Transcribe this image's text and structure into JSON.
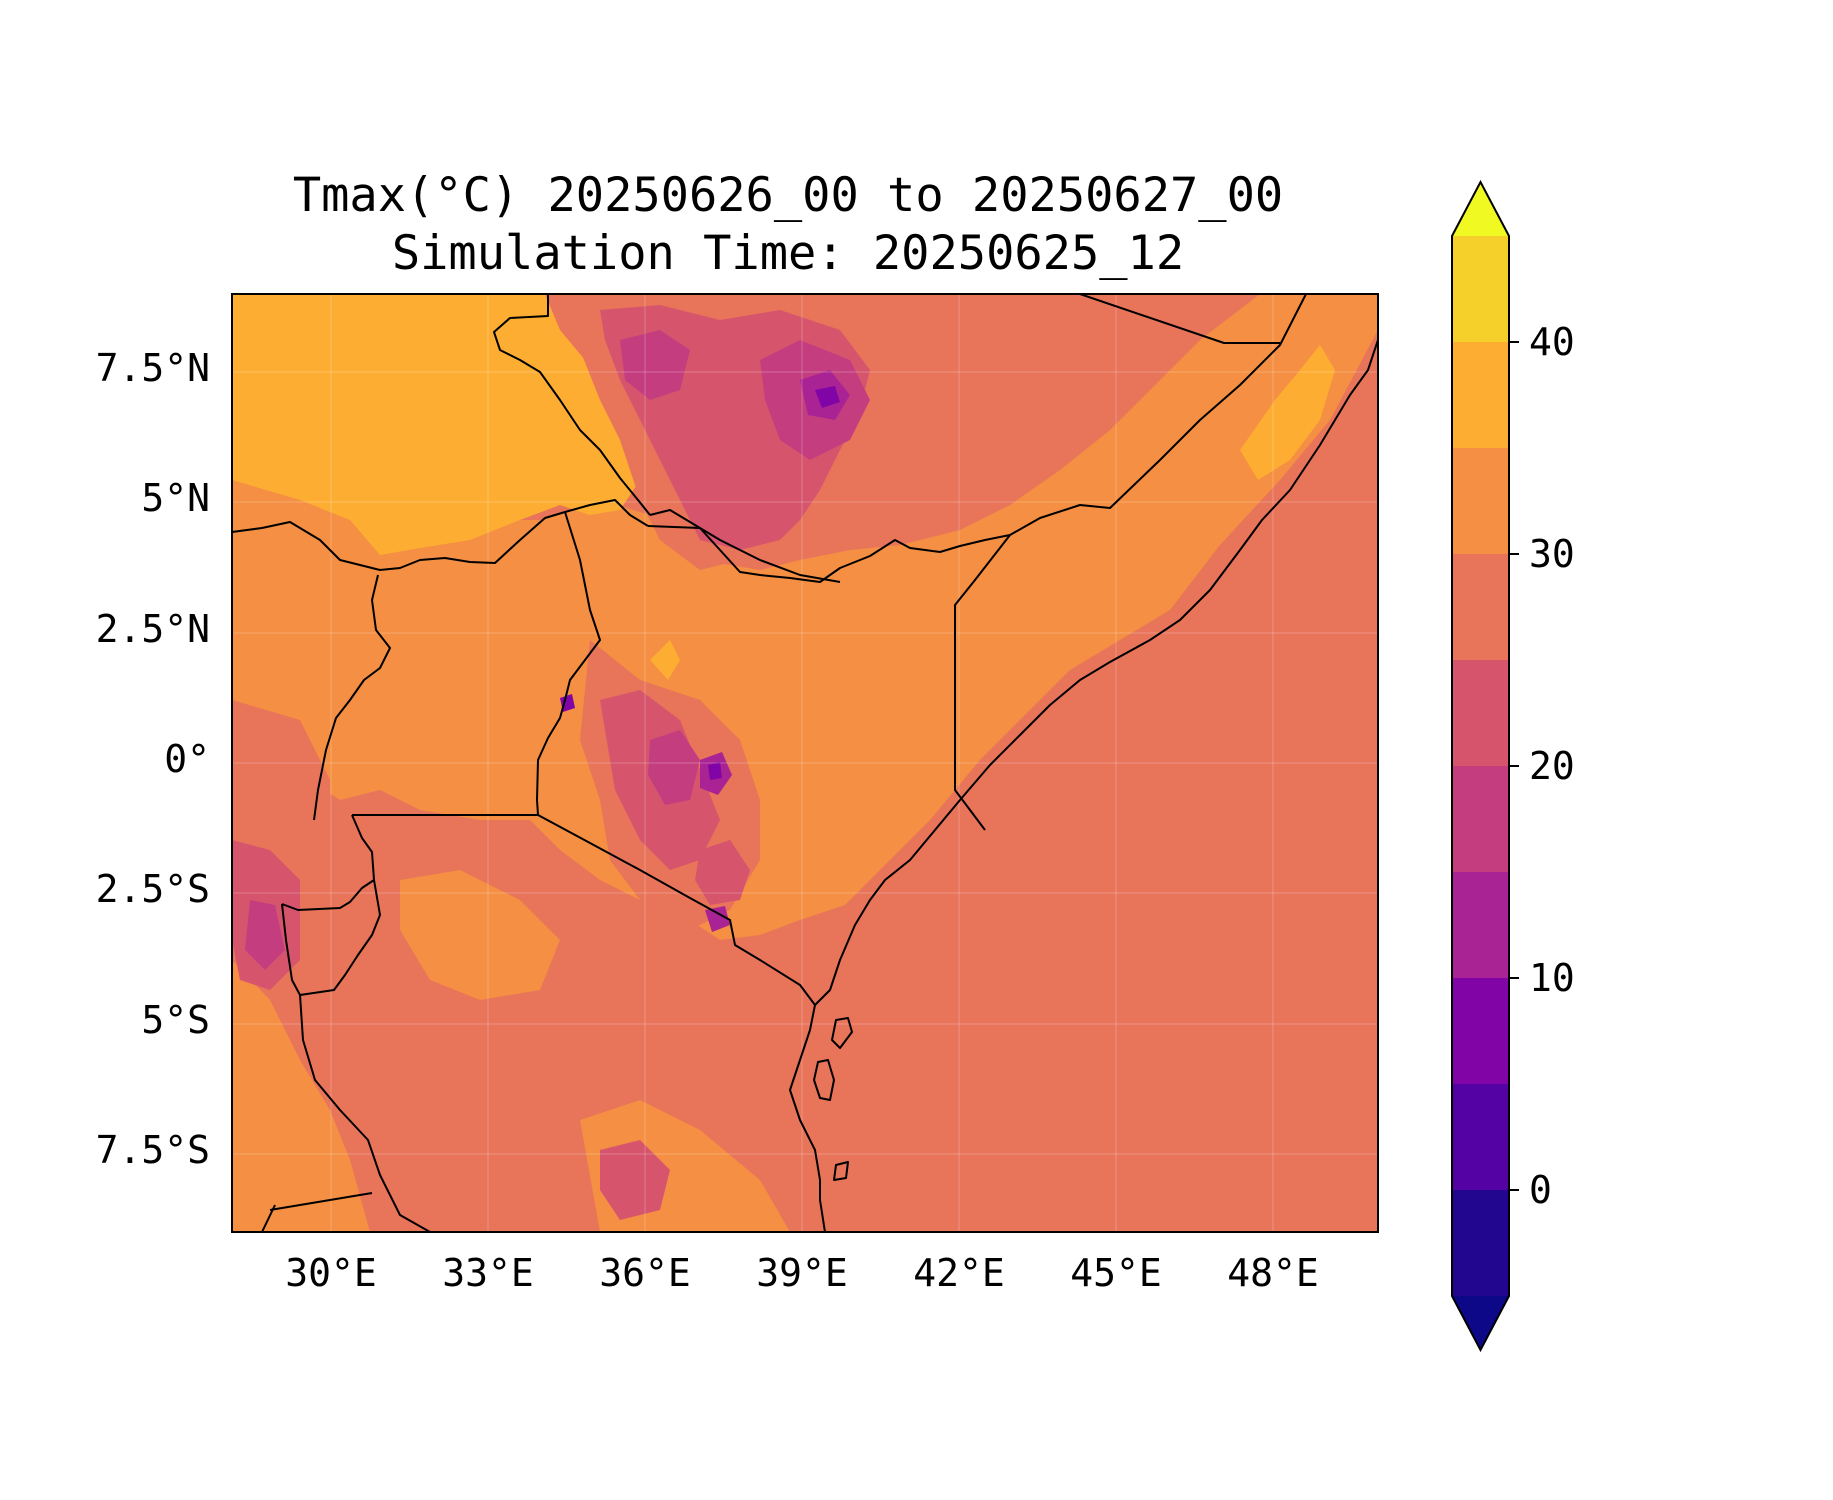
{
  "chart_data": {
    "type": "heatmap",
    "title": "Tmax(°C) 20250626_00 to 20250627_00",
    "subtitle": "Simulation Time: 20250625_12",
    "projection": "PlateCarree",
    "extent": {
      "lon": [
        27.1,
        49.0
      ],
      "lat": [
        -9.0,
        9.0
      ]
    },
    "x_ticks": [
      {
        "value": 30,
        "label": "30°E"
      },
      {
        "value": 33,
        "label": "33°E"
      },
      {
        "value": 36,
        "label": "36°E"
      },
      {
        "value": 39,
        "label": "39°E"
      },
      {
        "value": 42,
        "label": "42°E"
      },
      {
        "value": 45,
        "label": "45°E"
      },
      {
        "value": 48,
        "label": "48°E"
      }
    ],
    "y_ticks": [
      {
        "value": 7.5,
        "label": "7.5°N"
      },
      {
        "value": 5,
        "label": "5°N"
      },
      {
        "value": 2.5,
        "label": "2.5°N"
      },
      {
        "value": 0,
        "label": "0°"
      },
      {
        "value": -2.5,
        "label": "2.5°S"
      },
      {
        "value": -5,
        "label": "5°S"
      },
      {
        "value": -7.5,
        "label": "7.5°S"
      }
    ],
    "grid": true,
    "colorbar": {
      "placement": "right",
      "extend": "both",
      "levels": [
        -5,
        0,
        5,
        10,
        15,
        20,
        25,
        30,
        35,
        40,
        45
      ],
      "colors": [
        "#220690",
        "#5502a4",
        "#8104a7",
        "#a92395",
        "#c43e7f",
        "#d6556d",
        "#e8745a",
        "#f48f43",
        "#fdae32",
        "#f6d02a"
      ],
      "under_color": "#0d0887",
      "over_color": "#f0f921",
      "ticks": [
        {
          "value": 0,
          "label": "0"
        },
        {
          "value": 10,
          "label": "10"
        },
        {
          "value": 20,
          "label": "20"
        },
        {
          "value": 30,
          "label": "30"
        },
        {
          "value": 40,
          "label": "40"
        }
      ]
    }
  }
}
